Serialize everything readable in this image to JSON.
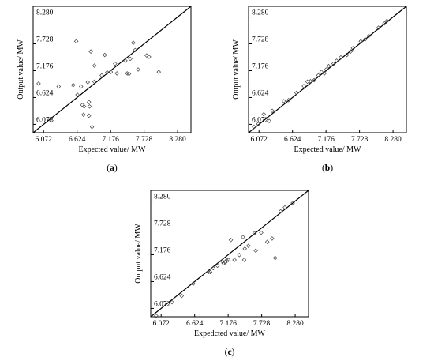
{
  "chart_data": [
    {
      "type": "scatter",
      "panel_label_text": "a",
      "xlabel": "Expected value/ MW",
      "ylabel": "Output value/ MW",
      "xlim": [
        5.9,
        8.5
      ],
      "ylim": [
        5.9,
        8.5
      ],
      "xticks": [
        "6.072",
        "6.624",
        "7.176",
        "7.728",
        "8.280"
      ],
      "yticks": [
        "6.072",
        "6.624",
        "7.176",
        "7.728",
        "8.280"
      ],
      "reference_line": "y = x",
      "marker": "open-diamond",
      "points": [
        [
          5.99,
          6.91
        ],
        [
          6.2,
          6.15
        ],
        [
          6.32,
          6.85
        ],
        [
          6.56,
          6.88
        ],
        [
          6.61,
          7.78
        ],
        [
          6.63,
          6.68
        ],
        [
          6.69,
          6.85
        ],
        [
          6.71,
          6.47
        ],
        [
          6.73,
          6.27
        ],
        [
          6.74,
          6.44
        ],
        [
          6.8,
          6.94
        ],
        [
          6.82,
          6.53
        ],
        [
          6.82,
          6.25
        ],
        [
          6.83,
          6.44
        ],
        [
          6.85,
          7.57
        ],
        [
          6.87,
          6.02
        ],
        [
          6.91,
          6.95
        ],
        [
          6.91,
          7.28
        ],
        [
          7.03,
          7.08
        ],
        [
          7.08,
          7.5
        ],
        [
          7.12,
          7.14
        ],
        [
          7.18,
          7.15
        ],
        [
          7.25,
          7.32
        ],
        [
          7.28,
          7.12
        ],
        [
          7.42,
          7.38
        ],
        [
          7.45,
          7.12
        ],
        [
          7.48,
          7.11
        ],
        [
          7.5,
          7.42
        ],
        [
          7.55,
          7.75
        ],
        [
          7.58,
          7.6
        ],
        [
          7.63,
          7.2
        ],
        [
          7.77,
          7.49
        ],
        [
          7.81,
          7.46
        ],
        [
          7.97,
          7.15
        ]
      ]
    },
    {
      "type": "scatter",
      "panel_label_text": "b",
      "xlabel": "Expected value/ MW",
      "ylabel": "Output value/ MW",
      "xlim": [
        5.9,
        8.5
      ],
      "ylim": [
        5.9,
        8.5
      ],
      "xticks": [
        "6.072",
        "6.624",
        "7.176",
        "7.728",
        "8.280"
      ],
      "yticks": [
        "6.072",
        "6.624",
        "7.176",
        "7.728",
        "8.280"
      ],
      "reference_line": "y = x",
      "marker": "open-diamond",
      "points": [
        [
          5.99,
          6.02
        ],
        [
          6.06,
          6.08
        ],
        [
          6.15,
          6.28
        ],
        [
          6.24,
          6.14
        ],
        [
          6.29,
          6.35
        ],
        [
          6.48,
          6.55
        ],
        [
          6.56,
          6.57
        ],
        [
          6.69,
          6.72
        ],
        [
          6.81,
          6.86
        ],
        [
          6.87,
          6.95
        ],
        [
          6.92,
          6.96
        ],
        [
          6.98,
          6.98
        ],
        [
          7.05,
          7.08
        ],
        [
          7.1,
          7.15
        ],
        [
          7.15,
          7.12
        ],
        [
          7.18,
          7.2
        ],
        [
          7.22,
          7.27
        ],
        [
          7.3,
          7.32
        ],
        [
          7.35,
          7.38
        ],
        [
          7.42,
          7.45
        ],
        [
          7.52,
          7.5
        ],
        [
          7.58,
          7.57
        ],
        [
          7.62,
          7.64
        ],
        [
          7.75,
          7.78
        ],
        [
          7.82,
          7.82
        ],
        [
          7.88,
          7.89
        ],
        [
          8.04,
          8.06
        ],
        [
          8.14,
          8.15
        ],
        [
          8.18,
          8.2
        ]
      ]
    },
    {
      "type": "scatter",
      "panel_label_text": "c",
      "xlabel": "Expedcted value/ MW",
      "ylabel": "Output value/ MW",
      "xlim": [
        5.9,
        8.5
      ],
      "ylim": [
        5.9,
        8.5
      ],
      "xticks": [
        "6.072",
        "6.624",
        "7.176",
        "7.728",
        "8.280"
      ],
      "yticks": [
        "6.072",
        "6.624",
        "7.176",
        "7.728",
        "8.280"
      ],
      "reference_line": "y = x",
      "marker": "open-diamond",
      "points": [
        [
          5.99,
          5.92
        ],
        [
          6.25,
          6.2
        ],
        [
          6.41,
          6.33
        ],
        [
          6.6,
          6.58
        ],
        [
          6.85,
          6.82
        ],
        [
          6.88,
          6.82
        ],
        [
          6.93,
          6.9
        ],
        [
          7.0,
          6.95
        ],
        [
          7.08,
          7.04
        ],
        [
          7.1,
          7.0
        ],
        [
          7.13,
          7.02
        ],
        [
          7.15,
          7.06
        ],
        [
          7.18,
          7.07
        ],
        [
          7.22,
          7.48
        ],
        [
          7.28,
          7.07
        ],
        [
          7.36,
          7.17
        ],
        [
          7.42,
          7.54
        ],
        [
          7.44,
          7.07
        ],
        [
          7.45,
          7.3
        ],
        [
          7.51,
          7.36
        ],
        [
          7.61,
          7.62
        ],
        [
          7.63,
          7.26
        ],
        [
          7.72,
          7.63
        ],
        [
          7.82,
          7.44
        ],
        [
          7.9,
          7.51
        ],
        [
          7.95,
          7.11
        ],
        [
          8.04,
          8.07
        ],
        [
          8.11,
          8.15
        ],
        [
          8.24,
          8.24
        ]
      ]
    }
  ]
}
